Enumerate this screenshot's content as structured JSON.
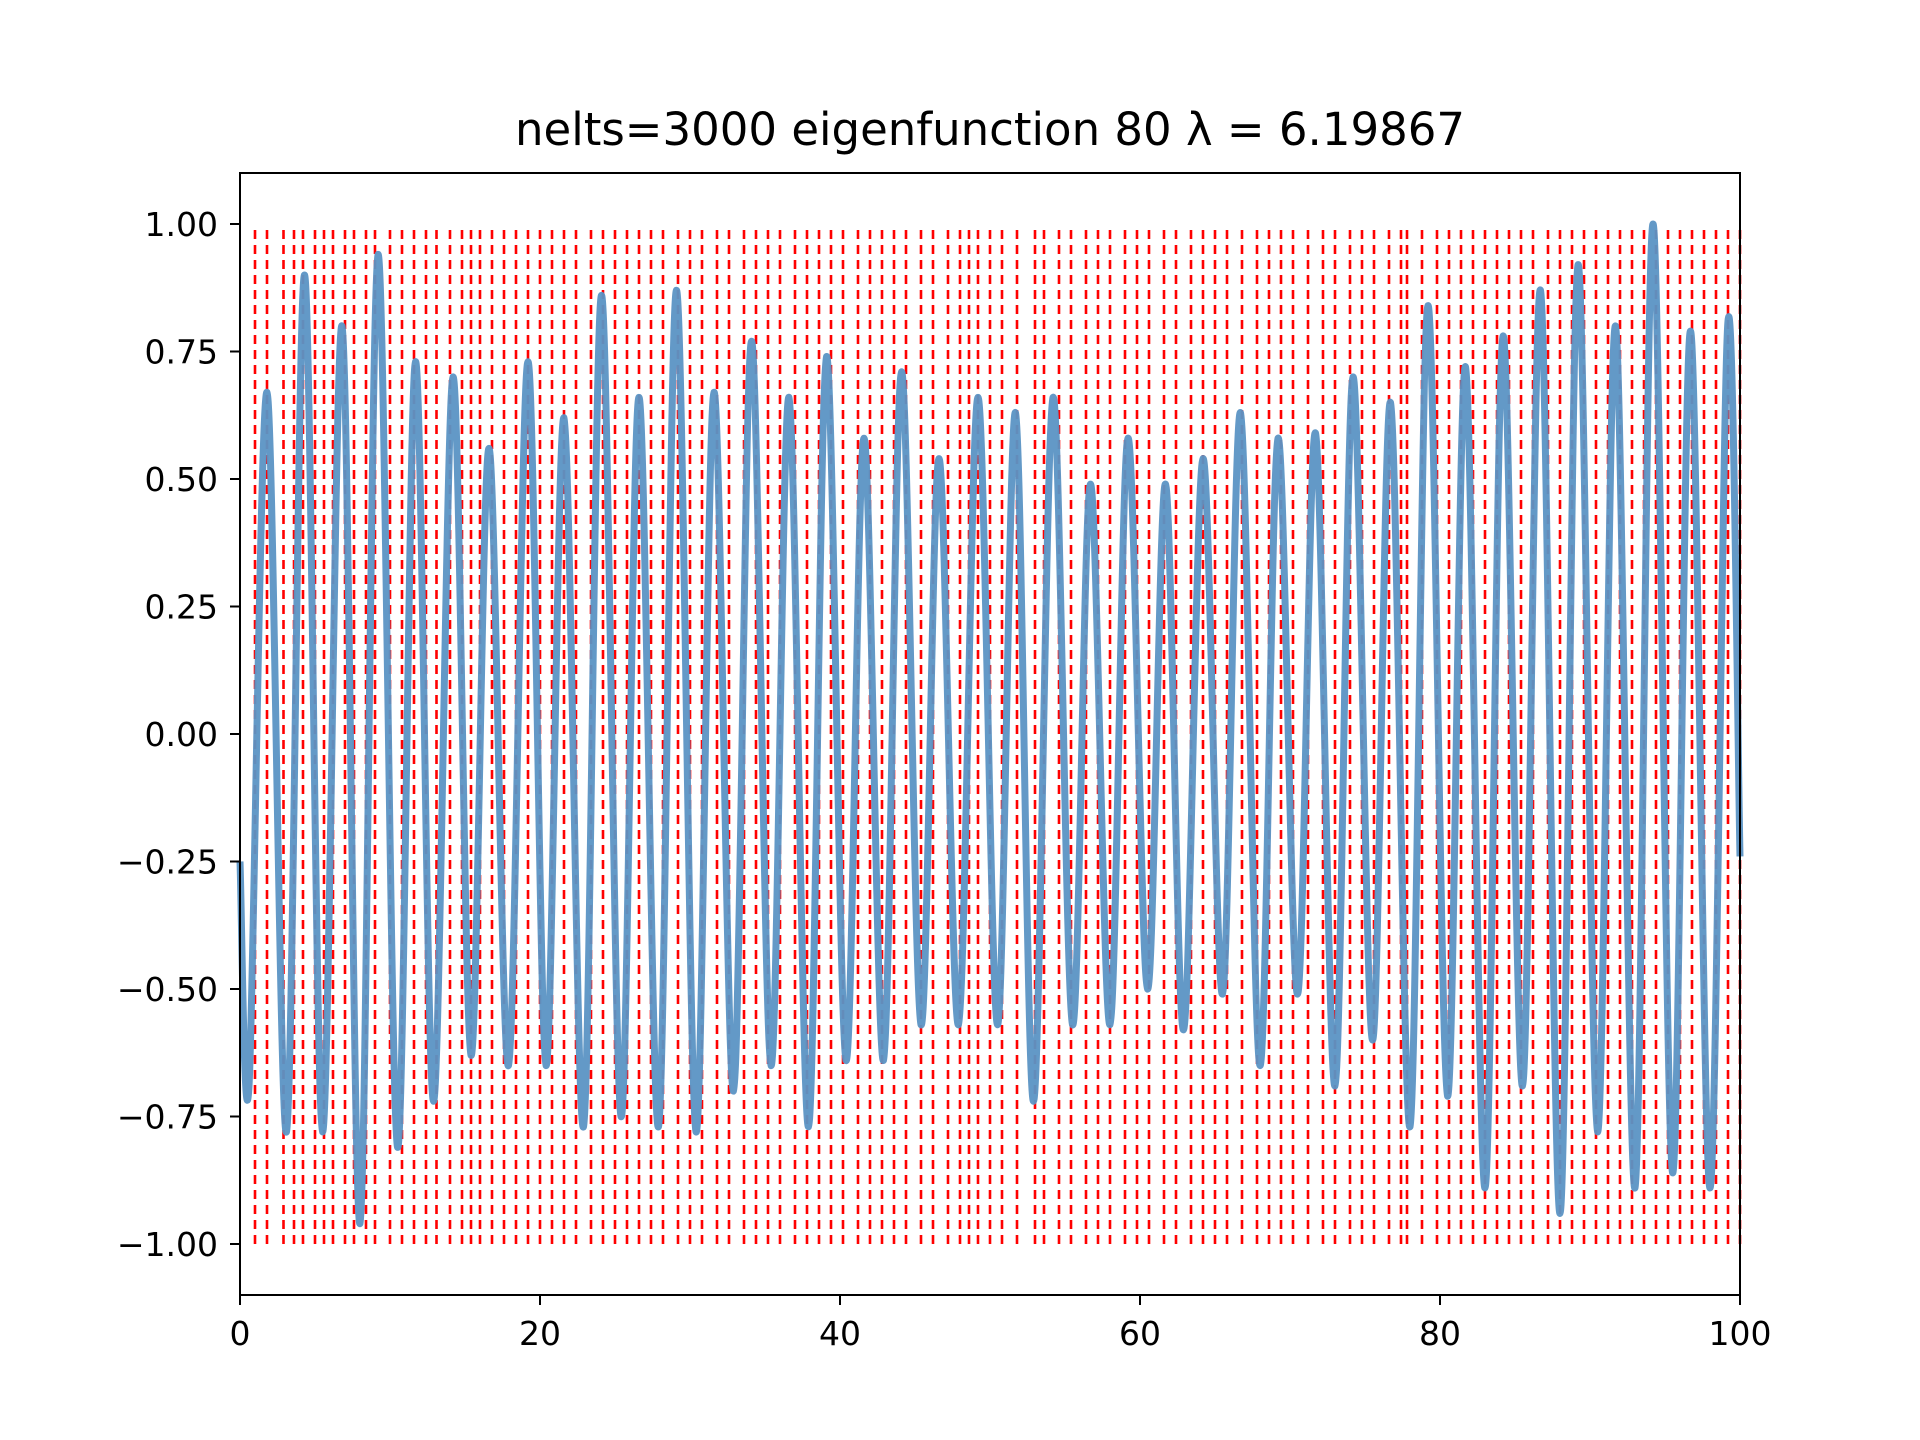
{
  "chart_data": {
    "type": "line",
    "title": "nelts=3000  eigenfunction 80  λ = 6.19867",
    "xlabel": "",
    "ylabel": "",
    "xlim": [
      0,
      100
    ],
    "ylim": [
      -1.1,
      1.1
    ],
    "x_ticks": [
      0,
      20,
      40,
      60,
      80,
      100
    ],
    "x_tick_labels": [
      "0",
      "20",
      "40",
      "60",
      "80",
      "100"
    ],
    "y_ticks": [
      1.0,
      0.75,
      0.5,
      0.25,
      0.0,
      -0.25,
      -0.5,
      -0.75,
      -1.0
    ],
    "y_tick_labels": [
      "1.00",
      "0.75",
      "0.50",
      "0.25",
      "0.00",
      "−0.25",
      "−0.50",
      "−0.75",
      "−1.00"
    ],
    "grid": false,
    "series": [
      {
        "color": "#5b94c4",
        "x": [
          0,
          0.6,
          1.8,
          3.1,
          4.3,
          5.5,
          6.8,
          8.0,
          9.2,
          10.5,
          11.7,
          12.9,
          14.2,
          15.4,
          16.6,
          17.9,
          19.2,
          20.4,
          21.6,
          22.9,
          24.1,
          25.4,
          26.6,
          27.9,
          29.1,
          30.4,
          31.6,
          32.9,
          34.1,
          35.4,
          36.6,
          37.9,
          39.1,
          40.4,
          41.6,
          42.9,
          44.1,
          45.4,
          46.6,
          47.9,
          49.2,
          50.5,
          51.7,
          52.9,
          54.2,
          55.5,
          56.7,
          58.0,
          59.2,
          60.5,
          61.7,
          62.9,
          64.2,
          65.5,
          66.7,
          68.0,
          69.2,
          70.5,
          71.7,
          73.0,
          74.2,
          75.5,
          76.7,
          78.0,
          79.2,
          80.5,
          81.7,
          83.0,
          84.2,
          85.5,
          86.7,
          88.0,
          89.2,
          90.5,
          91.7,
          93.0,
          94.2,
          95.5,
          96.7,
          98.0,
          99.2,
          100
        ],
        "y": [
          -0.25,
          -0.69,
          0.67,
          -0.78,
          0.9,
          -0.78,
          0.8,
          -0.96,
          0.94,
          -0.81,
          0.73,
          -0.72,
          0.7,
          -0.63,
          0.56,
          -0.65,
          0.73,
          -0.65,
          0.62,
          -0.77,
          0.86,
          -0.75,
          0.66,
          -0.77,
          0.87,
          -0.78,
          0.67,
          -0.7,
          0.77,
          -0.65,
          0.66,
          -0.77,
          0.74,
          -0.64,
          0.58,
          -0.64,
          0.71,
          -0.57,
          0.54,
          -0.57,
          0.66,
          -0.57,
          0.63,
          -0.72,
          0.66,
          -0.57,
          0.49,
          -0.57,
          0.58,
          -0.5,
          0.49,
          -0.58,
          0.54,
          -0.51,
          0.63,
          -0.65,
          0.58,
          -0.51,
          0.59,
          -0.69,
          0.7,
          -0.6,
          0.65,
          -0.77,
          0.84,
          -0.71,
          0.72,
          -0.89,
          0.78,
          -0.69,
          0.87,
          -0.94,
          0.92,
          -0.78,
          0.8,
          -0.89,
          1.0,
          -0.86,
          0.79,
          -0.89,
          0.81,
          -0.24
        ]
      }
    ],
    "element_boundaries": {
      "color": "#ff0000",
      "style": "dashed",
      "y_range": [
        -1.0,
        1.0
      ],
      "x": [
        1.0,
        1.8,
        2.9,
        3.6,
        4.2,
        5.0,
        5.6,
        6.2,
        7.0,
        7.6,
        8.4,
        9.0,
        10.0,
        10.8,
        11.6,
        12.4,
        13.1,
        14.0,
        14.8,
        15.4,
        16.0,
        16.8,
        17.6,
        18.4,
        19.2,
        20.0,
        20.8,
        21.6,
        22.4,
        23.4,
        24.2,
        25.0,
        25.8,
        26.6,
        27.4,
        28.2,
        29.2,
        30.0,
        30.8,
        31.8,
        32.6,
        33.6,
        34.4,
        35.2,
        36.0,
        37.0,
        37.8,
        38.6,
        39.4,
        40.2,
        41.2,
        42.0,
        42.8,
        43.6,
        44.4,
        45.4,
        46.2,
        47.2,
        48.0,
        48.6,
        49.2,
        50.0,
        50.8,
        51.8,
        53.0,
        53.6,
        54.6,
        55.4,
        56.4,
        57.2,
        58.0,
        59.0,
        59.8,
        60.6,
        61.6,
        62.4,
        63.4,
        64.2,
        65.0,
        65.8,
        66.8,
        67.8,
        68.6,
        69.4,
        70.2,
        71.2,
        72.2,
        73.0,
        74.0,
        74.8,
        75.6,
        76.6,
        77.4,
        77.8,
        78.8,
        79.8,
        80.6,
        81.4,
        82.2,
        83.0,
        83.8,
        84.6,
        85.4,
        86.2,
        87.2,
        88.0,
        88.8,
        89.6,
        90.4,
        91.2,
        92.0,
        92.8,
        93.6,
        94.4,
        95.2,
        96.0,
        96.8,
        97.6,
        98.4,
        99.2,
        100.0
      ]
    }
  }
}
